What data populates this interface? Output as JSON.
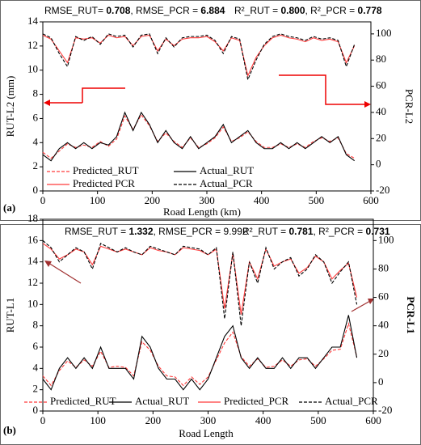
{
  "chart_data": [
    {
      "type": "line",
      "panel_label": "(a)",
      "x_label": "Road Length (km)",
      "y_label": "RUT-L2 (mm)",
      "y2_label": "PCR-L2",
      "annotations": [
        [
          {
            "text": "RMSE_RUT= ",
            "bold": false
          },
          {
            "text": "0.708",
            "bold": true
          },
          {
            "text": ", RMSE_PCR = ",
            "bold": false
          },
          {
            "text": "6.884",
            "bold": true
          }
        ],
        [
          {
            "text": "R²_RUT = ",
            "bold": false
          },
          {
            "text": "0.800",
            "bold": true
          },
          {
            "text": ", R²_PCR = ",
            "bold": false
          },
          {
            "text": "0.778",
            "bold": true
          }
        ]
      ],
      "x": [
        0,
        15,
        30,
        45,
        60,
        75,
        90,
        105,
        120,
        135,
        150,
        165,
        180,
        195,
        210,
        225,
        240,
        255,
        270,
        285,
        300,
        315,
        330,
        345,
        360,
        375,
        390,
        405,
        420,
        435,
        450,
        465,
        480,
        495,
        510,
        525,
        540,
        555,
        570
      ],
      "xlim": [
        0,
        600
      ],
      "xticks": [
        0,
        100,
        200,
        300,
        400,
        500,
        600
      ],
      "ylim": [
        0,
        14
      ],
      "yticks": [
        0,
        2,
        4,
        6,
        8,
        10,
        12,
        14
      ],
      "y2lim": [
        -20,
        109.2
      ],
      "y2ticks": [
        -20,
        0,
        20,
        40,
        60,
        80,
        100
      ],
      "series": [
        {
          "name": "Predicted_RUT",
          "color": "#ff3b3b",
          "line_style": "dashed",
          "axis": "y",
          "values": [
            3.2,
            2.7,
            3.3,
            3.9,
            3.6,
            3.8,
            3.6,
            4.1,
            3.7,
            4.3,
            6.2,
            5.1,
            6.3,
            5.4,
            4.1,
            4.8,
            4.1,
            3.6,
            4.4,
            3.6,
            3.9,
            4.4,
            5.3,
            4.1,
            4.4,
            4.9,
            4.1,
            3.6,
            3.6,
            3.9,
            3.6,
            3.9,
            3.6,
            4.1,
            4.4,
            4.1,
            4.4,
            3.1,
            2.7
          ]
        },
        {
          "name": "Actual_RUT",
          "color": "#000000",
          "line_style": "solid",
          "axis": "y",
          "values": [
            3,
            2.5,
            3.5,
            4,
            3.5,
            4,
            3.5,
            4,
            3.8,
            4.5,
            6.5,
            5,
            6.5,
            5.5,
            4,
            5,
            4,
            3.5,
            4.5,
            3.5,
            4,
            4.5,
            5.5,
            4,
            4.5,
            5,
            4,
            3.5,
            3.5,
            4,
            3.5,
            4,
            3.5,
            4,
            4.5,
            4,
            4.5,
            3,
            2.5
          ]
        },
        {
          "name": "Predicted PCR",
          "color": "#ff3b3b",
          "line_style": "solid",
          "axis": "y2",
          "values": [
            99,
            96,
            87,
            78,
            97,
            96,
            97,
            93,
            99,
            97,
            98,
            91,
            98,
            99,
            87,
            96,
            91,
            96,
            97,
            97,
            98,
            94,
            87,
            97,
            95,
            68,
            82,
            91,
            97,
            99,
            97,
            96,
            94,
            97,
            95,
            96,
            94,
            78,
            91
          ]
        },
        {
          "name": "Actual_PCR",
          "color": "#000000",
          "line_style": "dashed",
          "axis": "y2",
          "values": [
            100,
            97,
            85,
            75,
            98,
            95,
            98,
            92,
            100,
            98,
            99,
            90,
            99,
            100,
            85,
            97,
            90,
            97,
            98,
            98,
            99,
            95,
            85,
            98,
            96,
            65,
            80,
            92,
            98,
            100,
            98,
            97,
            95,
            98,
            96,
            97,
            95,
            75,
            92
          ]
        }
      ]
    },
    {
      "type": "line",
      "panel_label": "(b)",
      "x_label": "Road Length",
      "y_label": "RUT-L1",
      "y2_label": "PCR-L1",
      "annotations": [
        [
          {
            "text": "RMSE_RUT = ",
            "bold": false
          },
          {
            "text": "1.332",
            "bold": true
          },
          {
            "text": ", RMSE_PCR = 9.992",
            "bold": false
          }
        ],
        [
          {
            "text": "R²_RUT = ",
            "bold": false
          },
          {
            "text": "0.781",
            "bold": true
          },
          {
            "text": ", R²_PCR = ",
            "bold": false
          },
          {
            "text": "0.731",
            "bold": true
          }
        ]
      ],
      "x": [
        0,
        15,
        30,
        45,
        60,
        75,
        90,
        105,
        120,
        135,
        150,
        165,
        180,
        195,
        210,
        225,
        240,
        255,
        270,
        285,
        300,
        315,
        330,
        345,
        360,
        375,
        390,
        405,
        420,
        435,
        450,
        465,
        480,
        495,
        510,
        525,
        540,
        555,
        570
      ],
      "xlim": [
        0,
        600
      ],
      "xticks": [
        0,
        100,
        200,
        300,
        400,
        500,
        600
      ],
      "ylim": [
        0,
        18
      ],
      "yticks": [
        0,
        2,
        4,
        6,
        8,
        10,
        12,
        14,
        16,
        18
      ],
      "y2lim": [
        -20,
        115
      ],
      "y2ticks": [
        -20,
        0,
        20,
        40,
        60,
        80,
        100
      ],
      "series": [
        {
          "name": "Predicted_RUT",
          "color": "#ff3b3b",
          "line_style": "dashed",
          "axis": "y",
          "values": [
            3.3,
            2.4,
            3.8,
            4.7,
            4.1,
            4.8,
            4.2,
            5.6,
            4.1,
            4.2,
            4.1,
            3.3,
            6.5,
            5.7,
            4.2,
            3.3,
            3.2,
            2.4,
            3.2,
            2.5,
            3.2,
            4.8,
            6.4,
            7.4,
            5.1,
            4.2,
            4.9,
            4.1,
            4.2,
            4.8,
            4.2,
            4.8,
            4.9,
            4.2,
            4.9,
            5.7,
            5.8,
            8.2,
            5.1
          ]
        },
        {
          "name": "Actual_RUT",
          "color": "#000000",
          "line_style": "solid",
          "axis": "y",
          "values": [
            3,
            2,
            4,
            5,
            4,
            5,
            4,
            6,
            4,
            4,
            4,
            3,
            7,
            6,
            4,
            3,
            3,
            2,
            3,
            2,
            3,
            5,
            7,
            8,
            5,
            4,
            5,
            4,
            4,
            5,
            4,
            5,
            5,
            4,
            5,
            6,
            6,
            9,
            5
          ]
        },
        {
          "name": "Predicted_PCR",
          "color": "#ff3b3b",
          "line_style": "solid",
          "axis": "y2",
          "values": [
            98,
            94,
            87,
            90,
            94,
            92,
            83,
            96,
            94,
            92,
            94,
            92,
            90,
            95,
            93,
            92,
            90,
            95,
            94,
            93,
            90,
            94,
            52,
            91,
            48,
            85,
            73,
            94,
            82,
            85,
            87,
            77,
            81,
            89,
            85,
            73,
            79,
            84,
            60
          ]
        },
        {
          "name": "Actual_PCR",
          "color": "#000000",
          "line_style": "dashed",
          "axis": "y2",
          "values": [
            100,
            95,
            85,
            90,
            95,
            92,
            80,
            98,
            95,
            92,
            95,
            92,
            90,
            96,
            94,
            92,
            90,
            96,
            95,
            94,
            90,
            95,
            45,
            92,
            40,
            85,
            70,
            95,
            80,
            85,
            88,
            75,
            80,
            90,
            85,
            70,
            78,
            85,
            55
          ]
        }
      ]
    }
  ]
}
